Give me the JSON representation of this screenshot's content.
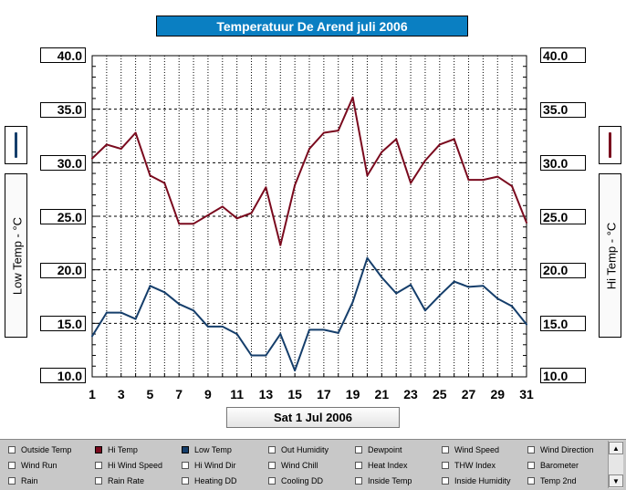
{
  "title": "Temperatuur De Arend juli 2006",
  "date_button": "Sat 1 Jul 2006",
  "left_axis_label": "Low Temp - °C",
  "right_axis_label": "Hi Temp - °C",
  "y_tick_labels": [
    "40.0",
    "35.0",
    "30.0",
    "25.0",
    "20.0",
    "15.0",
    "10.0"
  ],
  "x_tick_labels": [
    "1",
    "3",
    "5",
    "7",
    "9",
    "11",
    "13",
    "15",
    "17",
    "19",
    "21",
    "23",
    "25",
    "27",
    "29",
    "31"
  ],
  "colors": {
    "title_bg": "#0a7fc2",
    "hi_temp": "#7a0a1e",
    "low_temp": "#153e6b",
    "selector_bg": "#c8c8c8"
  },
  "chart_data": {
    "type": "line",
    "x": [
      1,
      2,
      3,
      4,
      5,
      6,
      7,
      8,
      9,
      10,
      11,
      12,
      13,
      14,
      15,
      16,
      17,
      18,
      19,
      20,
      21,
      22,
      23,
      24,
      25,
      26,
      27,
      28,
      29,
      30,
      31
    ],
    "xlim": [
      1,
      31
    ],
    "ylim": [
      10,
      40
    ],
    "grid": true,
    "series": [
      {
        "name": "Hi Temp",
        "color": "#7a0a1e",
        "values": [
          30.4,
          31.7,
          31.3,
          32.8,
          28.8,
          28.1,
          24.3,
          24.3,
          25.1,
          25.9,
          24.8,
          25.3,
          27.7,
          22.3,
          27.9,
          31.3,
          32.8,
          33.0,
          36.1,
          28.8,
          31.0,
          32.2,
          28.1,
          30.2,
          31.7,
          32.2,
          28.4,
          28.4,
          28.7,
          27.8,
          24.4
        ]
      },
      {
        "name": "Low Temp",
        "color": "#153e6b",
        "values": [
          13.8,
          16.0,
          16.0,
          15.4,
          18.5,
          17.9,
          16.8,
          16.2,
          14.7,
          14.7,
          14.0,
          12.0,
          12.0,
          14.0,
          10.6,
          14.4,
          14.4,
          14.1,
          17.0,
          21.1,
          19.3,
          17.8,
          18.6,
          16.2,
          17.6,
          18.9,
          18.4,
          18.5,
          17.3,
          16.6,
          14.9
        ]
      }
    ]
  },
  "selector": {
    "options": [
      [
        "Outside Temp",
        "Hi Temp",
        "Low Temp",
        "Out Humidity",
        "Dewpoint",
        "Wind Speed",
        "Wind Direction"
      ],
      [
        "Wind Run",
        "Hi Wind Speed",
        "Hi Wind Dir",
        "Wind Chill",
        "Heat Index",
        "THW Index",
        "Barometer"
      ],
      [
        "Rain",
        "Rain Rate",
        "Heating DD",
        "Cooling DD",
        "Inside Temp",
        "Inside Humidity",
        "Temp 2nd"
      ]
    ],
    "checked": {
      "Hi Temp": "#7a0a1e",
      "Low Temp": "#153e6b"
    }
  }
}
